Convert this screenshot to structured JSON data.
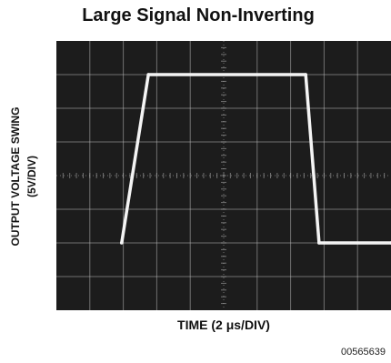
{
  "chart_data": {
    "type": "line",
    "title": "Large Signal Non-Inverting",
    "ylabel_line1": "OUTPUT VOLTAGE SWING",
    "ylabel_line2": "(5V/DIV)",
    "xlabel": "TIME (2 μs/DIV)",
    "grid": true,
    "x_divisions": 10,
    "y_divisions": 8,
    "xlim": [
      0,
      20
    ],
    "ylim": [
      0,
      40
    ],
    "series": [
      {
        "x": [
          3.9,
          5.5,
          14.9,
          15.7,
          20
        ],
        "y": [
          10,
          35,
          35,
          10,
          10
        ]
      }
    ],
    "colors": {
      "screen": "#1c1c1c",
      "grid": "#b8b8b8",
      "trace": "#f4f4f4"
    }
  },
  "figure_id": "00565639"
}
